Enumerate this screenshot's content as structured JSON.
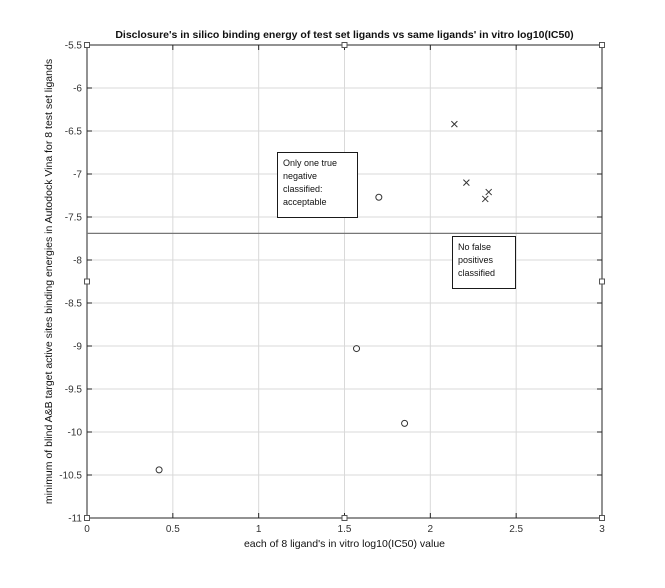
{
  "chart_data": {
    "type": "scatter",
    "title": "Disclosure's in silico binding energy of test set ligands vs same ligands' in vitro log10(IC50)",
    "xlabel": "each of 8 ligand's in vitro log10(IC50) value",
    "ylabel": "minimum of blind A&B target active sites binding energies in Autodock Vina for 8 test set ligands",
    "xlim": [
      0,
      3
    ],
    "ylim": [
      -11,
      -5.5
    ],
    "x_ticks": [
      "0",
      "0.5",
      "1",
      "1.5",
      "2",
      "2.5",
      "3"
    ],
    "y_ticks": [
      "-5.5",
      "-6",
      "-6.5",
      "-7",
      "-7.5",
      "-8",
      "-8.5",
      "-9",
      "-9.5",
      "-10",
      "-10.5",
      "-11"
    ],
    "grid": true,
    "series": [
      {
        "marker": "circle",
        "color": "#333333",
        "points": [
          [
            0.42,
            -10.44
          ],
          [
            1.57,
            -9.03
          ],
          [
            1.7,
            -7.27
          ],
          [
            1.85,
            -9.9
          ]
        ]
      },
      {
        "marker": "x",
        "color": "#333333",
        "points": [
          [
            2.14,
            -6.42
          ],
          [
            2.21,
            -7.1
          ],
          [
            2.32,
            -7.29
          ],
          [
            2.34,
            -7.21
          ]
        ]
      }
    ],
    "threshold_line": {
      "y": -7.69,
      "color": "#777777"
    },
    "square_markers": [
      [
        0,
        -5.5
      ],
      [
        1.5,
        -5.5
      ],
      [
        3,
        -5.5
      ],
      [
        0,
        -8.25
      ],
      [
        3,
        -8.25
      ],
      [
        0,
        -11
      ],
      [
        1.5,
        -11
      ],
      [
        3,
        -11
      ]
    ],
    "annotations": [
      {
        "lines": [
          "Only one true",
          "negative",
          "classified:",
          "acceptable"
        ]
      },
      {
        "lines": [
          "No false",
          "positives",
          "classified"
        ]
      }
    ]
  },
  "colors": {
    "axes": "#262626",
    "grid": "#d9d9d9",
    "text": "#111111",
    "tick_text": "#333333"
  }
}
